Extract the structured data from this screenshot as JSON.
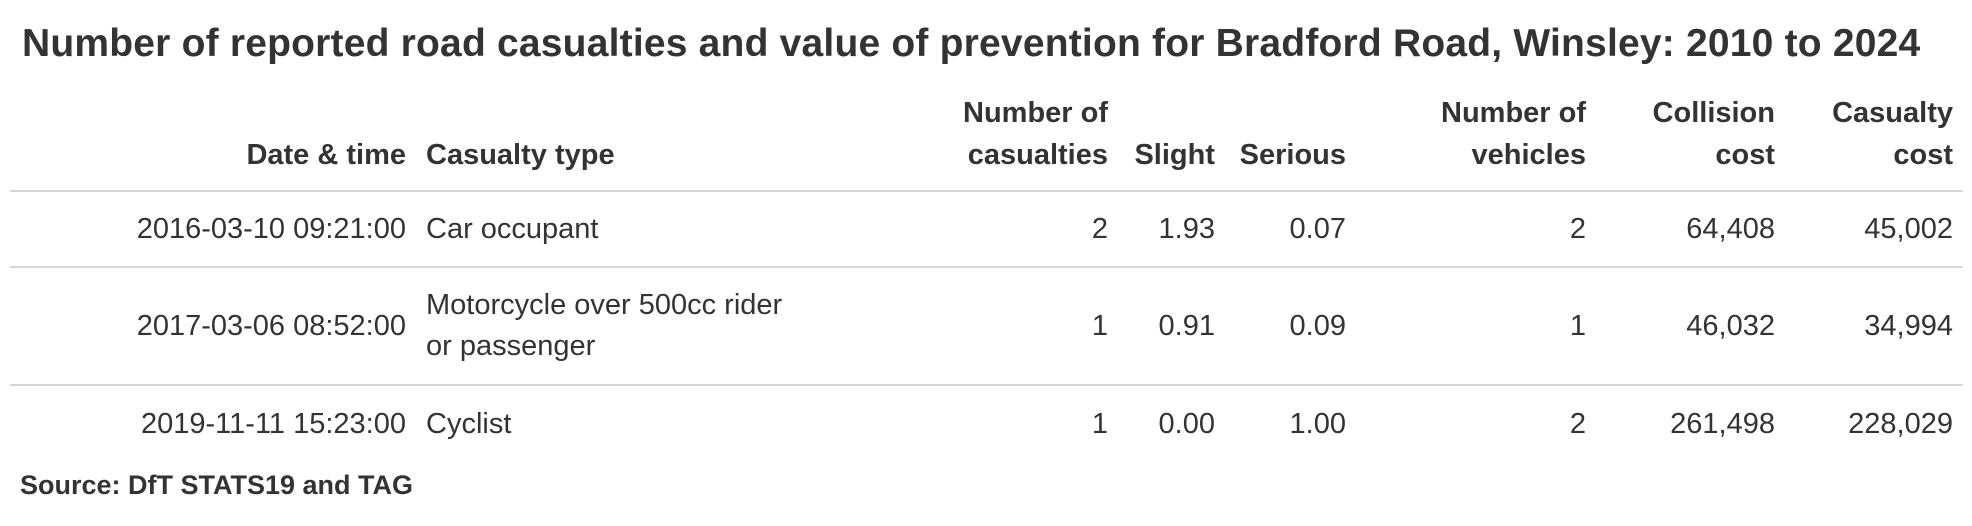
{
  "title": "Number of reported road casualties and value of prevention for Bradford Road, Winsley: 2010 to 2024",
  "columns": [
    {
      "key": "datetime",
      "label": "Date & time"
    },
    {
      "key": "casualty_type",
      "label": "Casualty type"
    },
    {
      "key": "num_casualties",
      "label_line1": "Number of",
      "label_line2": "casualties"
    },
    {
      "key": "slight",
      "label": "Slight"
    },
    {
      "key": "serious",
      "label": "Serious"
    },
    {
      "key": "num_vehicles",
      "label_line1": "Number of",
      "label_line2": "vehicles"
    },
    {
      "key": "collision_cost",
      "label_line1": "Collision",
      "label_line2": "cost"
    },
    {
      "key": "casualty_cost",
      "label_line1": "Casualty",
      "label_line2": "cost"
    }
  ],
  "rows": [
    {
      "datetime": "2016-03-10 09:21:00",
      "casualty_type": "Car occupant",
      "num_casualties": "2",
      "slight": "1.93",
      "serious": "0.07",
      "num_vehicles": "2",
      "collision_cost": "64,408",
      "casualty_cost": "45,002"
    },
    {
      "datetime": "2017-03-06 08:52:00",
      "casualty_type_line1": "Motorcycle over 500cc rider",
      "casualty_type_line2": "or passenger",
      "num_casualties": "1",
      "slight": "0.91",
      "serious": "0.09",
      "num_vehicles": "1",
      "collision_cost": "46,032",
      "casualty_cost": "34,994"
    },
    {
      "datetime": "2019-11-11 15:23:00",
      "casualty_type": "Cyclist",
      "num_casualties": "1",
      "slight": "0.00",
      "serious": "1.00",
      "num_vehicles": "2",
      "collision_cost": "261,498",
      "casualty_cost": "228,029"
    }
  ],
  "source": "Source: DfT STATS19 and TAG"
}
